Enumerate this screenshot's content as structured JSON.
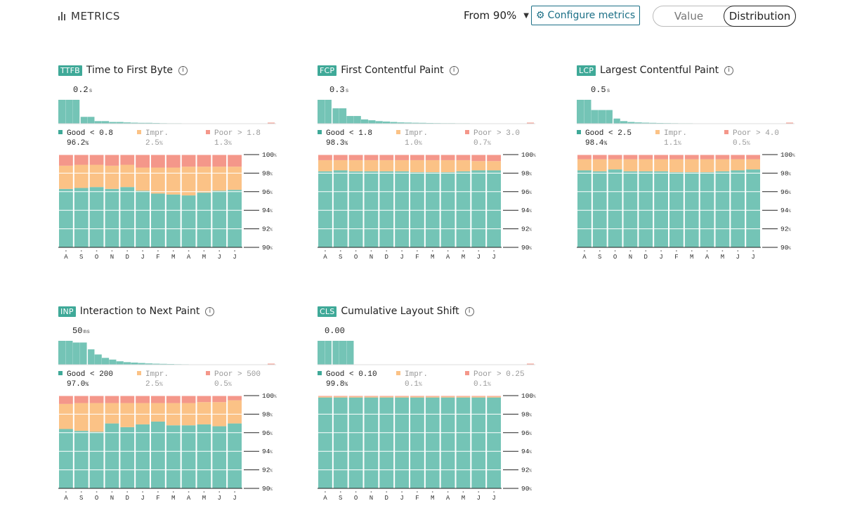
{
  "header": {
    "title": "METRICS",
    "percentile_select": "From 90%",
    "configure_label": "Configure metrics",
    "view_options": [
      "Value",
      "Distribution"
    ],
    "active_view": "Distribution"
  },
  "colors": {
    "good": "#74c4b6",
    "improve": "#fbc286",
    "poor": "#f4978a",
    "badge": "#3fa998",
    "accent": "#1b6f86"
  },
  "chart_data": [
    {
      "type": "bar",
      "id": "ttfb",
      "badge": "TTFB",
      "title": "Time to First Byte",
      "value": "0.2",
      "unit": "s",
      "legend": {
        "good_label": "Good < 0.8",
        "good_pct": "96.2",
        "good_unit": "%",
        "impr_label": "Impr.",
        "impr_pct": "2.5",
        "impr_unit": "%",
        "poor_label": "Poor > 1.8",
        "poor_pct": "1.3",
        "poor_unit": "%"
      },
      "histogram": [
        28,
        28,
        28,
        8,
        8,
        3,
        3,
        2,
        2,
        1.5,
        1.2,
        1,
        1,
        0.8,
        0.6,
        0.5,
        0.5,
        0.4,
        0.4,
        0.3,
        0.3,
        0.3,
        0.2,
        0.2,
        0.2,
        0.2,
        0.2,
        0.2,
        0.2,
        0.2
      ],
      "marker_index": 3,
      "categories": [
        "A",
        "S",
        "O",
        "N",
        "D",
        "J",
        "F",
        "M",
        "A",
        "M",
        "J",
        "J"
      ],
      "series": [
        {
          "name": "Good",
          "values": [
            96.3,
            96.4,
            96.5,
            96.3,
            96.5,
            96.1,
            95.8,
            95.7,
            95.6,
            95.9,
            96.1,
            96.2
          ]
        },
        {
          "name": "Improve",
          "values": [
            2.5,
            2.5,
            2.4,
            2.5,
            2.4,
            2.5,
            2.8,
            2.9,
            3.1,
            2.8,
            2.6,
            2.5
          ]
        },
        {
          "name": "Poor",
          "values": [
            1.2,
            1.1,
            1.1,
            1.2,
            1.1,
            1.4,
            1.4,
            1.4,
            1.3,
            1.3,
            1.3,
            1.3
          ]
        }
      ],
      "ylim": [
        90,
        100
      ],
      "y_ticks": [
        "100",
        "98",
        "96",
        "94",
        "92",
        "90"
      ],
      "y_unit": "%"
    },
    {
      "type": "bar",
      "id": "fcp",
      "badge": "FCP",
      "title": "First Contentful Paint",
      "value": "0.3",
      "unit": "s",
      "legend": {
        "good_label": "Good < 1.8",
        "good_pct": "98.3",
        "good_unit": "%",
        "impr_label": "Impr.",
        "impr_pct": "1.0",
        "impr_unit": "%",
        "poor_label": "Poor > 3.0",
        "poor_pct": "0.7",
        "poor_unit": "%"
      },
      "histogram": [
        28,
        28,
        18,
        18,
        9,
        9,
        5,
        4,
        3,
        2.5,
        2,
        1.5,
        1.3,
        1.1,
        1,
        0.8,
        0.7,
        0.6,
        0.6,
        0.5,
        0.5,
        0.4,
        0.4,
        0.3,
        0.3,
        0.3,
        0.3,
        0.2,
        0.2,
        0.2
      ],
      "marker_index": 2,
      "categories": [
        "A",
        "S",
        "O",
        "N",
        "D",
        "J",
        "F",
        "M",
        "A",
        "M",
        "J",
        "J"
      ],
      "series": [
        {
          "name": "Good",
          "values": [
            98.2,
            98.3,
            98.2,
            98.2,
            98.2,
            98.2,
            98.1,
            98.1,
            98.1,
            98.2,
            98.3,
            98.3
          ]
        },
        {
          "name": "Improve",
          "values": [
            1.2,
            1.1,
            1.2,
            1.2,
            1.2,
            1.2,
            1.3,
            1.3,
            1.3,
            1.2,
            1.0,
            1.0
          ]
        },
        {
          "name": "Poor",
          "values": [
            0.6,
            0.6,
            0.6,
            0.6,
            0.6,
            0.6,
            0.6,
            0.6,
            0.6,
            0.6,
            0.7,
            0.7
          ]
        }
      ],
      "ylim": [
        90,
        100
      ],
      "y_ticks": [
        "100",
        "98",
        "96",
        "94",
        "92",
        "90"
      ],
      "y_unit": "%"
    },
    {
      "type": "bar",
      "id": "lcp",
      "badge": "LCP",
      "title": "Largest Contentful Paint",
      "value": "0.5",
      "unit": "s",
      "legend": {
        "good_label": "Good < 2.5",
        "good_pct": "98.4",
        "good_unit": "%",
        "impr_label": "Impr.",
        "impr_pct": "1.1",
        "impr_unit": "%",
        "poor_label": "Poor > 4.0",
        "poor_pct": "0.5",
        "poor_unit": "%"
      },
      "histogram": [
        28,
        28,
        16,
        16,
        16,
        6,
        3,
        2,
        1.5,
        1.2,
        1,
        0.8,
        0.7,
        0.6,
        0.5,
        0.5,
        0.4,
        0.4,
        0.3,
        0.3,
        0.3,
        0.2,
        0.2,
        0.2,
        0.2,
        0.2,
        0.2,
        0.2,
        0.2,
        0.2
      ],
      "marker_index": 5,
      "categories": [
        "A",
        "S",
        "O",
        "N",
        "D",
        "J",
        "F",
        "M",
        "A",
        "M",
        "J",
        "J"
      ],
      "series": [
        {
          "name": "Good",
          "values": [
            98.3,
            98.2,
            98.4,
            98.2,
            98.2,
            98.2,
            98.1,
            98.1,
            98.1,
            98.2,
            98.3,
            98.4
          ]
        },
        {
          "name": "Improve",
          "values": [
            1.2,
            1.3,
            1.1,
            1.3,
            1.3,
            1.3,
            1.4,
            1.4,
            1.4,
            1.3,
            1.2,
            1.1
          ]
        },
        {
          "name": "Poor",
          "values": [
            0.5,
            0.5,
            0.5,
            0.5,
            0.5,
            0.5,
            0.5,
            0.5,
            0.5,
            0.5,
            0.5,
            0.5
          ]
        }
      ],
      "ylim": [
        90,
        100
      ],
      "y_ticks": [
        "100",
        "98",
        "96",
        "94",
        "92",
        "90"
      ],
      "y_unit": "%"
    },
    {
      "type": "bar",
      "id": "inp",
      "badge": "INP",
      "title": "Interaction to Next Paint",
      "value": "50",
      "unit": "ms",
      "legend": {
        "good_label": "Good < 200",
        "good_pct": "97.0",
        "good_unit": "%",
        "impr_label": "Impr.",
        "impr_pct": "2.5",
        "impr_unit": "%",
        "poor_label": "Poor > 500",
        "poor_pct": "0.5",
        "poor_unit": "%"
      },
      "histogram": [
        28,
        28,
        26,
        26,
        18,
        12,
        8,
        6,
        4,
        3,
        2.5,
        2,
        1.5,
        1.2,
        1,
        0.8,
        0.6,
        0.5,
        0.4,
        0.3,
        0.3,
        0.2,
        0.2,
        0.2,
        0.2,
        0.2,
        0.2,
        0.2,
        0.2,
        0.2
      ],
      "marker_index": 4,
      "categories": [
        "A",
        "S",
        "O",
        "N",
        "D",
        "J",
        "F",
        "M",
        "A",
        "M",
        "J",
        "J"
      ],
      "series": [
        {
          "name": "Good",
          "values": [
            96.4,
            96.2,
            96.1,
            97.0,
            96.6,
            96.9,
            97.2,
            96.8,
            96.8,
            96.9,
            96.7,
            97.0
          ]
        },
        {
          "name": "Improve",
          "values": [
            2.7,
            3.0,
            3.1,
            2.2,
            2.6,
            2.3,
            2.0,
            2.4,
            2.4,
            2.4,
            2.6,
            2.5
          ]
        },
        {
          "name": "Poor",
          "values": [
            0.9,
            0.8,
            0.8,
            0.8,
            0.8,
            0.8,
            0.8,
            0.8,
            0.8,
            0.7,
            0.7,
            0.5
          ]
        }
      ],
      "ylim": [
        90,
        100
      ],
      "y_ticks": [
        "100",
        "98",
        "96",
        "94",
        "92",
        "90"
      ],
      "y_unit": "%"
    },
    {
      "type": "bar",
      "id": "cls",
      "badge": "CLS",
      "title": "Cumulative Layout Shift",
      "value": "0.00",
      "unit": "",
      "legend": {
        "good_label": "Good < 0.10",
        "good_pct": "99.8",
        "good_unit": "%",
        "impr_label": "Impr.",
        "impr_pct": "0.1",
        "impr_unit": "%",
        "poor_label": "Poor > 0.25",
        "poor_pct": "0.1",
        "poor_unit": "%"
      },
      "histogram": [
        28,
        28,
        28,
        28,
        28,
        0.1,
        0.1,
        0.1,
        0.1,
        0.1,
        0.1,
        0.1,
        0.1,
        0.1,
        0.1,
        0.1,
        0.1,
        0.1,
        0.1,
        0.1,
        0.1,
        0.1,
        0.1,
        0.1,
        0.1,
        0.1,
        0.1,
        0.1,
        0.1,
        0.1
      ],
      "marker_index": 2,
      "categories": [
        "A",
        "S",
        "O",
        "N",
        "D",
        "J",
        "F",
        "M",
        "A",
        "M",
        "J",
        "J"
      ],
      "series": [
        {
          "name": "Good",
          "values": [
            99.8,
            99.8,
            99.8,
            99.8,
            99.8,
            99.8,
            99.8,
            99.8,
            99.8,
            99.8,
            99.8,
            99.8
          ]
        },
        {
          "name": "Improve",
          "values": [
            0.1,
            0.1,
            0.1,
            0.1,
            0.1,
            0.1,
            0.1,
            0.1,
            0.1,
            0.1,
            0.1,
            0.1
          ]
        },
        {
          "name": "Poor",
          "values": [
            0.1,
            0.1,
            0.1,
            0.1,
            0.1,
            0.1,
            0.1,
            0.1,
            0.1,
            0.1,
            0.1,
            0.1
          ]
        }
      ],
      "ylim": [
        90,
        100
      ],
      "y_ticks": [
        "100",
        "98",
        "96",
        "94",
        "92",
        "90"
      ],
      "y_unit": "%"
    }
  ]
}
